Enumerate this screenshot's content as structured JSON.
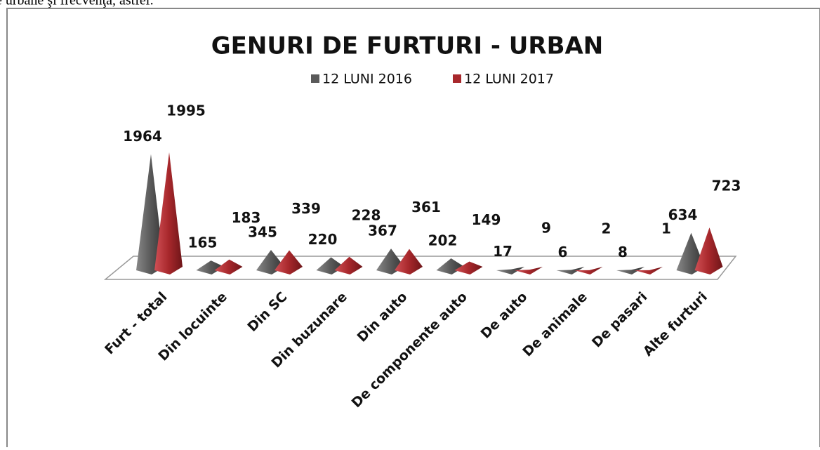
{
  "page_text": "e urbane şi frecvenţa, astfel:",
  "chart_data": {
    "type": "pyramid3d",
    "title": "GENURI DE FURTURI  - URBAN",
    "categories": [
      "Furt - total",
      "Din locuinte",
      "Din SC",
      "Din buzunare",
      "Din auto",
      "De componente auto",
      "De auto",
      "De animale",
      "De pasari",
      "Alte furturi"
    ],
    "series": [
      {
        "name": "12 LUNI 2016",
        "color": "#5a5a5a",
        "values": [
          1964,
          165,
          345,
          220,
          367,
          202,
          17,
          6,
          8,
          634
        ]
      },
      {
        "name": "12 LUNI 2017",
        "color": "#a8282c",
        "values": [
          1995,
          183,
          339,
          228,
          361,
          149,
          9,
          2,
          1,
          723
        ]
      }
    ],
    "legend": "top"
  }
}
